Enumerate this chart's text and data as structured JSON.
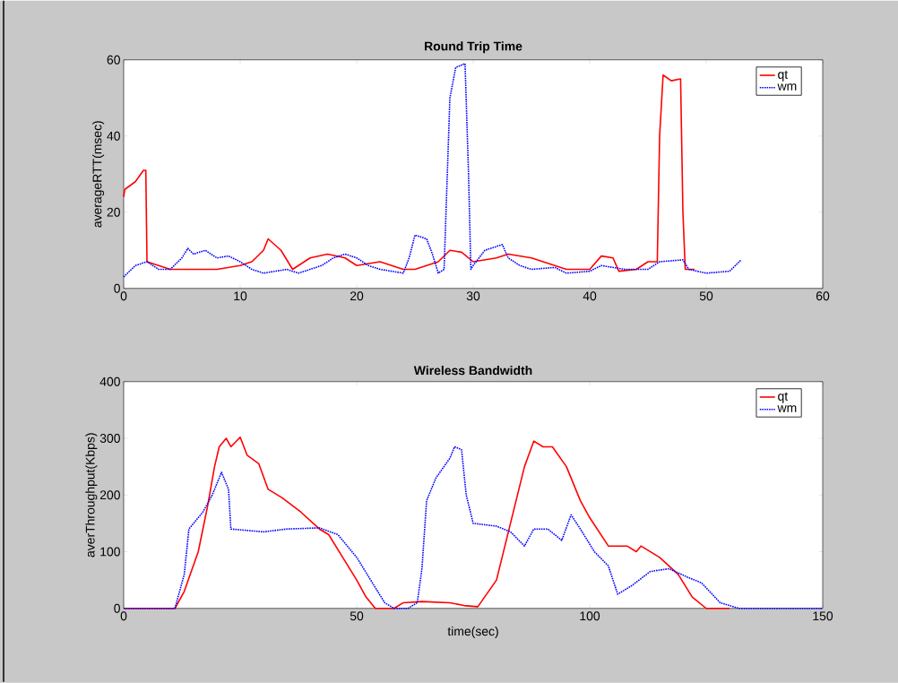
{
  "chart_data": [
    {
      "type": "line",
      "title": "Round Trip Time",
      "ylabel": "averageRTT(msec)",
      "xlim": [
        0,
        60
      ],
      "ylim": [
        0,
        60
      ],
      "xticks": [
        0,
        10,
        20,
        30,
        40,
        50,
        60
      ],
      "yticks": [
        0,
        20,
        40,
        60
      ],
      "legend": "top right",
      "series": [
        {
          "name": "qt",
          "color": "#ff0000",
          "line_style": "solid",
          "x": [
            0,
            0.1,
            1,
            1.7,
            1.9,
            2,
            3,
            4,
            6,
            8,
            10,
            11,
            12,
            12.4,
            13.5,
            14.5,
            16,
            17.5,
            19,
            20,
            22,
            24,
            25,
            27,
            28,
            29,
            30,
            32,
            33,
            35,
            36,
            38,
            40,
            41,
            42,
            42.5,
            44,
            45,
            45.8,
            46,
            46.3,
            47,
            47.8,
            48,
            48.2,
            49
          ],
          "values": [
            24,
            26,
            28,
            31,
            31,
            7,
            6,
            5,
            5,
            5,
            6,
            7,
            10,
            13,
            10,
            5,
            8,
            9,
            8,
            6,
            7,
            5,
            5,
            7,
            10,
            9.5,
            7,
            8,
            9,
            8,
            7,
            5,
            5,
            8.5,
            8,
            4.5,
            5,
            7,
            7,
            40,
            56,
            54.5,
            55,
            20,
            5,
            5
          ]
        },
        {
          "name": "wm",
          "color": "#0000ff",
          "line_style": "dotted",
          "x": [
            0,
            1,
            2,
            3,
            4,
            5,
            5.5,
            6,
            7,
            8,
            9,
            10,
            11,
            12,
            14,
            15,
            17,
            18,
            19,
            20,
            21,
            22,
            24,
            24.5,
            25,
            26,
            26.5,
            27,
            27.5,
            28,
            28.5,
            29.3,
            29.6,
            29.8,
            30,
            31,
            32.5,
            33,
            34,
            35,
            37,
            38,
            40,
            41,
            43,
            45,
            46,
            48,
            48.5,
            50,
            52,
            52.5,
            53
          ],
          "values": [
            3,
            6,
            7,
            5,
            5,
            8,
            10.5,
            9,
            10,
            8,
            8.5,
            7,
            5,
            4,
            5,
            4,
            6,
            8,
            9,
            8,
            6,
            5,
            4,
            8,
            14,
            13,
            9,
            4,
            5,
            50,
            58,
            59,
            30,
            5,
            6,
            10,
            11.5,
            8,
            6,
            5,
            5.5,
            4,
            4.5,
            6,
            5,
            5,
            7,
            7.5,
            5,
            4,
            4.5,
            6,
            7.5
          ]
        }
      ]
    },
    {
      "type": "line",
      "title": "Wireless Bandwidth",
      "xlabel": "time(sec)",
      "ylabel": "averThroughput(Kbps)",
      "xlim": [
        0,
        150
      ],
      "ylim": [
        0,
        400
      ],
      "xticks": [
        0,
        50,
        100,
        150
      ],
      "yticks": [
        0,
        100,
        200,
        300,
        400
      ],
      "legend": "top right",
      "series": [
        {
          "name": "qt",
          "color": "#ff0000",
          "line_style": "solid",
          "x": [
            0,
            11,
            13,
            16,
            18,
            19.5,
            20.5,
            22,
            23,
            25,
            26.5,
            29,
            31,
            34,
            38,
            42,
            44,
            47,
            50,
            52,
            54,
            58,
            60,
            64,
            70,
            73,
            76,
            80,
            83,
            86,
            88,
            90,
            92,
            95,
            98,
            100,
            104,
            108,
            110,
            111,
            115,
            119,
            122,
            125,
            130
          ],
          "values": [
            0,
            0,
            30,
            100,
            180,
            250,
            285,
            300,
            285,
            302,
            270,
            255,
            210,
            195,
            170,
            140,
            130,
            90,
            50,
            20,
            0,
            0,
            10,
            12,
            10,
            5,
            3,
            50,
            150,
            250,
            295,
            285,
            285,
            250,
            190,
            160,
            110,
            110,
            100,
            110,
            90,
            60,
            20,
            0,
            0
          ]
        },
        {
          "name": "wm",
          "color": "#0000ff",
          "line_style": "dotted",
          "x": [
            0,
            11,
            13,
            14,
            17,
            19,
            21,
            22.5,
            23,
            30,
            35,
            42,
            46,
            50,
            53,
            56,
            58,
            61,
            63,
            64,
            65,
            67,
            70,
            71,
            72.5,
            73.5,
            75,
            80,
            83,
            86,
            88,
            91,
            94,
            96,
            98,
            101,
            104,
            106,
            109,
            113,
            117,
            121,
            124,
            128,
            132,
            150
          ],
          "values": [
            0,
            0,
            60,
            140,
            170,
            200,
            240,
            210,
            140,
            135,
            140,
            142,
            130,
            90,
            50,
            10,
            0,
            0,
            10,
            70,
            190,
            230,
            265,
            285,
            280,
            200,
            150,
            145,
            135,
            110,
            140,
            140,
            120,
            165,
            140,
            100,
            75,
            25,
            40,
            65,
            70,
            55,
            45,
            10,
            0,
            0
          ]
        }
      ]
    }
  ]
}
